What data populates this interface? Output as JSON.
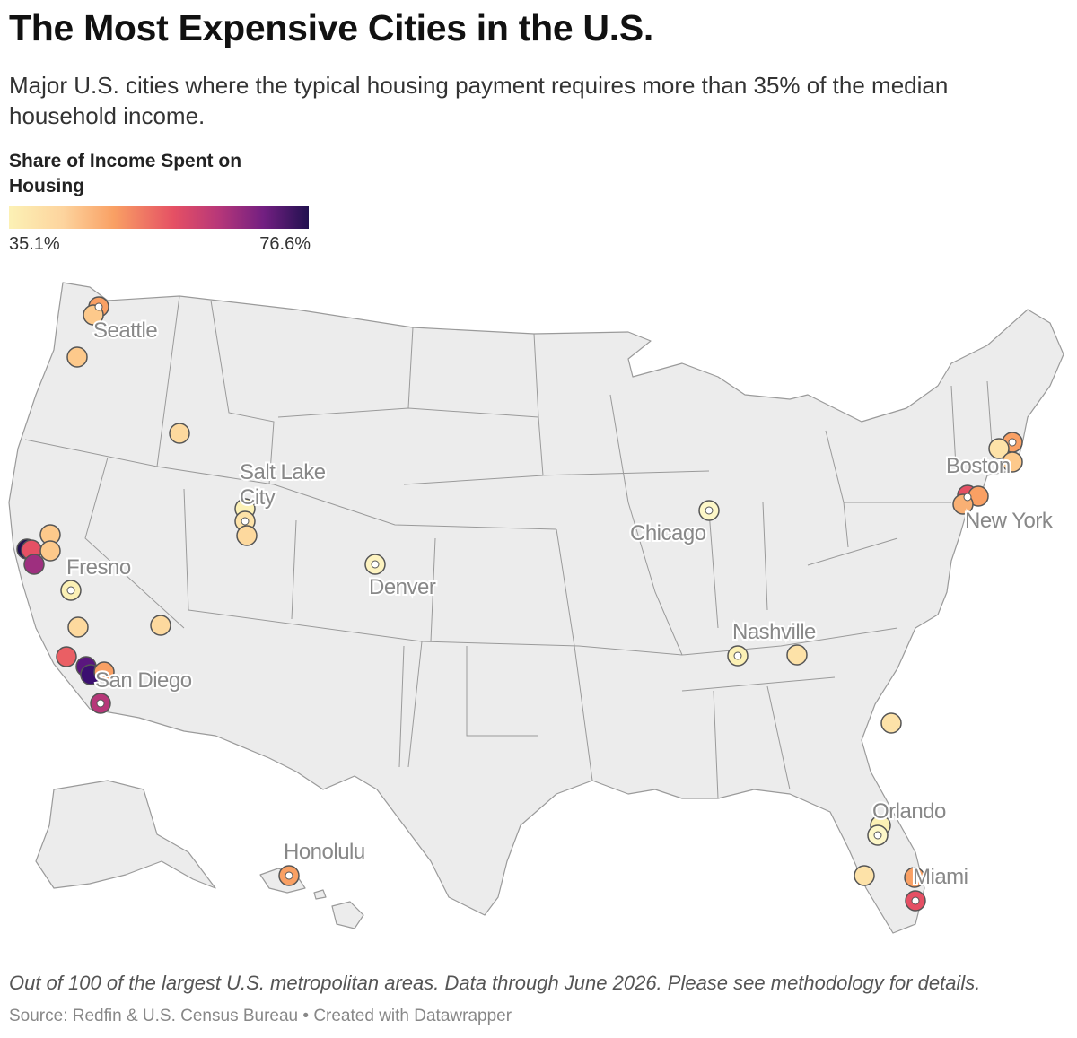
{
  "header": {
    "title": "The Most Expensive Cities in the U.S.",
    "subtitle": "Major U.S. cities where the typical housing payment requires more than 35% of the median household income."
  },
  "legend": {
    "title": "Share of Income Spent on Housing",
    "min_label": "35.1%",
    "max_label": "76.6%",
    "min_color": "#fcf1b5",
    "max_color": "#221150"
  },
  "map": {
    "type": "symbol-map",
    "region": "United States",
    "labels": [
      "Seattle",
      "Salt Lake City",
      "Fresno",
      "Denver",
      "San Diego",
      "Chicago",
      "Nashville",
      "Boston",
      "New York",
      "Orlando",
      "Miami",
      "Honolulu"
    ]
  },
  "footer": {
    "note": "Out of 100 of the largest U.S. metropolitan areas. Data through June 2026. Please see methodology for details.",
    "source": "Source: Redfin & U.S. Census Bureau • Created with Datawrapper"
  }
}
